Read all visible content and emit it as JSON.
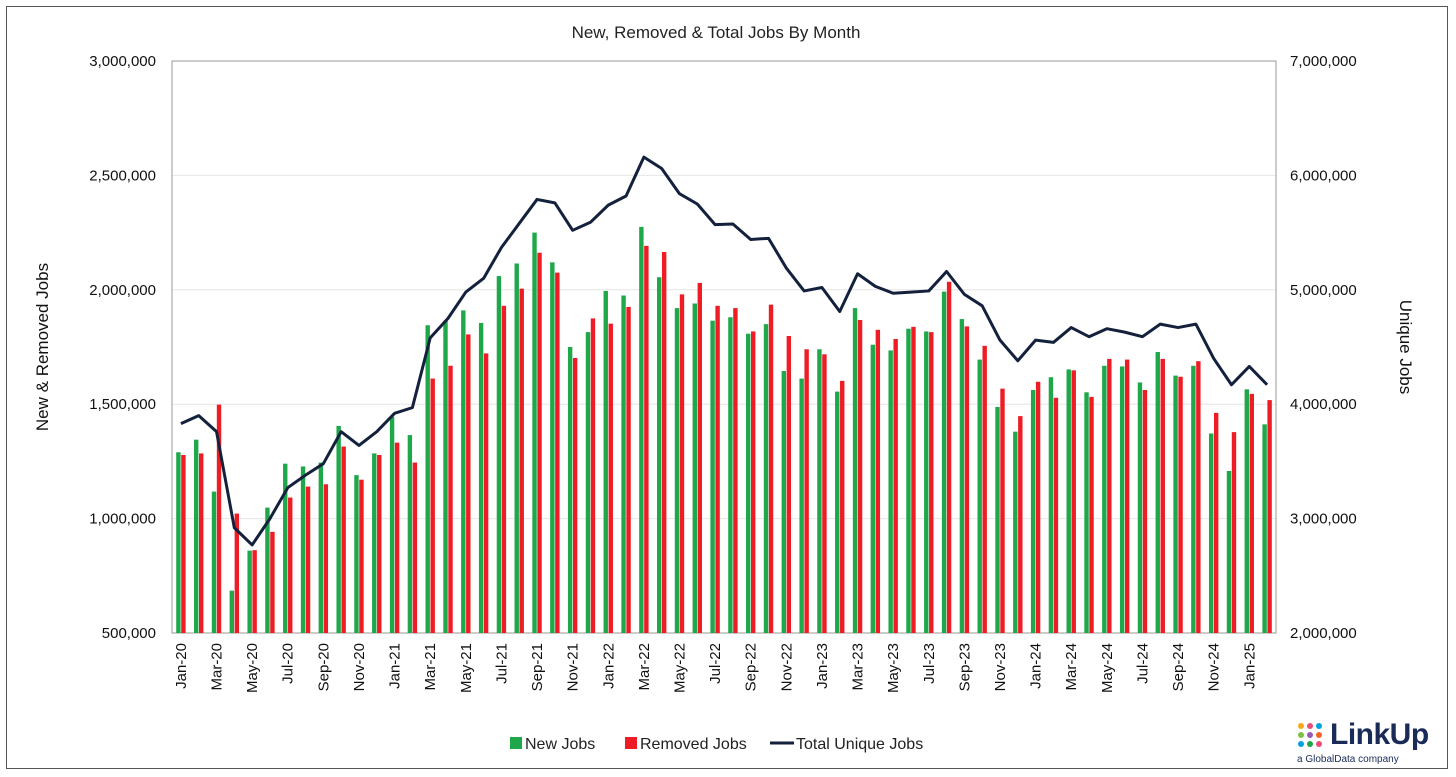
{
  "chart_data": {
    "type": "bar",
    "title": "New, Removed & Total Jobs By Month",
    "ylabel_left": "New & Removed Jobs",
    "ylabel_right": "Unique Jobs",
    "ylim_left": [
      500000,
      3000000
    ],
    "ylim_right": [
      2000000,
      7000000
    ],
    "yticks_left": [
      "500,000",
      "1,000,000",
      "1,500,000",
      "2,000,000",
      "2,500,000",
      "3,000,000"
    ],
    "yticks_right": [
      "2,000,000",
      "3,000,000",
      "4,000,000",
      "5,000,000",
      "6,000,000",
      "7,000,000"
    ],
    "yticks_left_values": [
      500000,
      1000000,
      1500000,
      2000000,
      2500000,
      3000000
    ],
    "yticks_right_values": [
      2000000,
      3000000,
      4000000,
      5000000,
      6000000,
      7000000
    ],
    "grid": "horizontal",
    "legend_position": "bottom",
    "categories": [
      "Jan-20",
      "Feb-20",
      "Mar-20",
      "Apr-20",
      "May-20",
      "Jun-20",
      "Jul-20",
      "Aug-20",
      "Sep-20",
      "Oct-20",
      "Nov-20",
      "Dec-20",
      "Jan-21",
      "Feb-21",
      "Mar-21",
      "Apr-21",
      "May-21",
      "Jun-21",
      "Jul-21",
      "Aug-21",
      "Sep-21",
      "Oct-21",
      "Nov-21",
      "Dec-21",
      "Jan-22",
      "Feb-22",
      "Mar-22",
      "Apr-22",
      "May-22",
      "Jun-22",
      "Jul-22",
      "Aug-22",
      "Sep-22",
      "Oct-22",
      "Nov-22",
      "Dec-22",
      "Jan-23",
      "Feb-23",
      "Mar-23",
      "Apr-23",
      "May-23",
      "Jun-23",
      "Jul-23",
      "Aug-23",
      "Sep-23",
      "Oct-23",
      "Nov-23",
      "Dec-23",
      "Jan-24",
      "Feb-24",
      "Mar-24",
      "Apr-24",
      "May-24",
      "Jun-24",
      "Jul-24",
      "Aug-24",
      "Sep-24",
      "Oct-24",
      "Nov-24",
      "Dec-24",
      "Jan-25",
      "Feb-25"
    ],
    "x_tick_labels": [
      "Jan-20",
      "Mar-20",
      "May-20",
      "Jul-20",
      "Sep-20",
      "Nov-20",
      "Jan-21",
      "Mar-21",
      "May-21",
      "Jul-21",
      "Sep-21",
      "Nov-21",
      "Jan-22",
      "Mar-22",
      "May-22",
      "Jul-22",
      "Sep-22",
      "Nov-22",
      "Jan-23",
      "Mar-23",
      "May-23",
      "Jul-23",
      "Sep-23",
      "Nov-23",
      "Jan-24",
      "Mar-24",
      "May-24",
      "Jul-24",
      "Sep-24",
      "Nov-24",
      "Jan-25"
    ],
    "series": [
      {
        "name": "New Jobs",
        "axis": "left",
        "type": "bar",
        "color": "#1fa84a",
        "values": [
          1290000,
          1345000,
          1118000,
          685000,
          860000,
          1048000,
          1240000,
          1228000,
          1245000,
          1405000,
          1190000,
          1285000,
          1445000,
          1365000,
          1845000,
          1865000,
          1910000,
          1855000,
          2060000,
          2115000,
          2250000,
          2120000,
          1750000,
          1815000,
          1995000,
          1975000,
          2275000,
          2055000,
          1920000,
          1940000,
          1865000,
          1880000,
          1808000,
          1850000,
          1645000,
          1612000,
          1740000,
          1555000,
          1920000,
          1760000,
          1735000,
          1830000,
          1818000,
          1992000,
          1872000,
          1695000,
          1488000,
          1380000,
          1562000,
          1618000,
          1652000,
          1552000,
          1668000,
          1665000,
          1595000,
          1728000,
          1625000,
          1668000,
          1372000,
          1208000,
          1565000,
          1412000
        ]
      },
      {
        "name": "Removed Jobs",
        "axis": "left",
        "type": "bar",
        "color": "#ee1c24",
        "values": [
          1278000,
          1285000,
          1498000,
          1022000,
          862000,
          942000,
          1092000,
          1140000,
          1150000,
          1315000,
          1170000,
          1278000,
          1332000,
          1245000,
          1612000,
          1668000,
          1805000,
          1722000,
          1930000,
          2005000,
          2162000,
          2075000,
          1702000,
          1875000,
          1852000,
          1925000,
          2192000,
          2165000,
          1980000,
          2030000,
          1930000,
          1920000,
          1818000,
          1935000,
          1798000,
          1740000,
          1718000,
          1602000,
          1868000,
          1825000,
          1785000,
          1838000,
          1815000,
          2035000,
          1840000,
          1755000,
          1568000,
          1448000,
          1598000,
          1528000,
          1648000,
          1532000,
          1698000,
          1695000,
          1562000,
          1698000,
          1620000,
          1688000,
          1462000,
          1378000,
          1545000,
          1518000
        ]
      },
      {
        "name": "Total Unique Jobs",
        "axis": "right",
        "type": "line",
        "color": "#14213d",
        "values": [
          3830000,
          3900000,
          3760000,
          2920000,
          2770000,
          3000000,
          3270000,
          3380000,
          3480000,
          3760000,
          3640000,
          3760000,
          3920000,
          3970000,
          4580000,
          4750000,
          4980000,
          5100000,
          5370000,
          5580000,
          5790000,
          5760000,
          5520000,
          5590000,
          5740000,
          5820000,
          6160000,
          6060000,
          5840000,
          5750000,
          5570000,
          5575000,
          5440000,
          5450000,
          5190000,
          4990000,
          5020000,
          4810000,
          5140000,
          5030000,
          4970000,
          4980000,
          4990000,
          5160000,
          4960000,
          4860000,
          4560000,
          4380000,
          4560000,
          4540000,
          4670000,
          4590000,
          4660000,
          4630000,
          4590000,
          4700000,
          4670000,
          4700000,
          4400000,
          4170000,
          4330000,
          4170000
        ]
      }
    ]
  },
  "legend": {
    "new_jobs": "New Jobs",
    "removed_jobs": "Removed Jobs",
    "total_unique_jobs": "Total Unique Jobs"
  },
  "logo": {
    "name": "LinkUp",
    "tagline": "a GlobalData company"
  }
}
